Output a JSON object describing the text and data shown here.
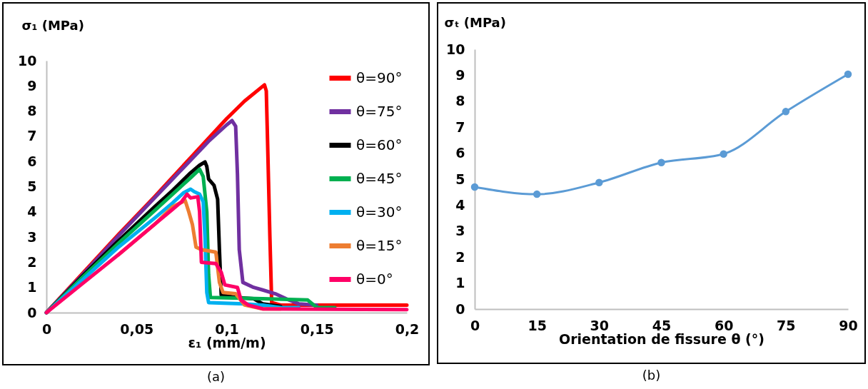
{
  "chart_data": [
    {
      "type": "line",
      "xlabel": "ε₁ (mm/m)",
      "ylabel": "σ₁ (MPa)",
      "xlim": [
        0,
        0.2
      ],
      "ylim": [
        0,
        10
      ],
      "xticks": [
        {
          "value": 0,
          "label": "0"
        },
        {
          "value": 0.05,
          "label": "0,05"
        },
        {
          "value": 0.1,
          "label": "0,1"
        },
        {
          "value": 0.15,
          "label": "0,15"
        },
        {
          "value": 0.2,
          "label": "0,2"
        }
      ],
      "yticks": [
        0,
        1,
        2,
        3,
        4,
        5,
        6,
        7,
        8,
        9,
        10
      ],
      "grid": false,
      "legend": "top right",
      "marker": "none",
      "annotations": [
        "(a)"
      ],
      "series": [
        {
          "name": "θ=90°",
          "color": "#ff0000",
          "x": [
            0,
            0.02,
            0.04,
            0.06,
            0.08,
            0.1,
            0.11,
            0.121,
            0.122,
            0.1225,
            0.124,
            0.125,
            0.13,
            0.16,
            0.2
          ],
          "values": [
            0,
            1.55,
            3.1,
            4.6,
            6.15,
            7.7,
            8.4,
            9.04,
            8.8,
            7.4,
            3,
            0.4,
            0.3,
            0.3,
            0.3
          ]
        },
        {
          "name": "θ=75°",
          "color": "#7030a0",
          "x": [
            0,
            0.02,
            0.04,
            0.06,
            0.08,
            0.09,
            0.1,
            0.103,
            0.105,
            0.106,
            0.107,
            0.109,
            0.115,
            0.12,
            0.127,
            0.133,
            0.14,
            0.15
          ],
          "values": [
            0,
            1.5,
            3.05,
            4.55,
            6.05,
            6.8,
            7.45,
            7.62,
            7.4,
            5.5,
            2.5,
            1.2,
            1,
            0.9,
            0.75,
            0.55,
            0.35,
            0.3
          ]
        },
        {
          "name": "θ=60°",
          "color": "#000000",
          "x": [
            0,
            0.02,
            0.04,
            0.06,
            0.07,
            0.08,
            0.085,
            0.088,
            0.089,
            0.09,
            0.093,
            0.095,
            0.096,
            0.097,
            0.105,
            0.115,
            0.12,
            0.13
          ],
          "values": [
            0,
            1.45,
            2.85,
            4.2,
            4.85,
            5.55,
            5.85,
            5.98,
            5.8,
            5.3,
            5.05,
            4.5,
            2.5,
            0.7,
            0.6,
            0.55,
            0.35,
            0.25
          ]
        },
        {
          "name": "θ=45°",
          "color": "#00b050",
          "x": [
            0,
            0.02,
            0.04,
            0.06,
            0.07,
            0.08,
            0.085,
            0.087,
            0.089,
            0.09,
            0.091,
            0.12,
            0.145,
            0.15,
            0.16
          ],
          "values": [
            0,
            1.4,
            2.75,
            4.05,
            4.7,
            5.35,
            5.69,
            5.4,
            4,
            1.5,
            0.6,
            0.55,
            0.5,
            0.2,
            0.2
          ]
        },
        {
          "name": "θ=30°",
          "color": "#00b0f0",
          "x": [
            0,
            0.02,
            0.04,
            0.06,
            0.07,
            0.076,
            0.08,
            0.082,
            0.085,
            0.087,
            0.088,
            0.089,
            0.09,
            0.11,
            0.12,
            0.13,
            0.14
          ],
          "values": [
            0,
            1.3,
            2.6,
            3.75,
            4.35,
            4.75,
            4.9,
            4.8,
            4.7,
            4.4,
            3,
            0.8,
            0.4,
            0.35,
            0.3,
            0.2,
            0.2
          ]
        },
        {
          "name": "θ=15°",
          "color": "#ed7d31",
          "x": [
            0.04,
            0.06,
            0.07,
            0.077,
            0.079,
            0.081,
            0.083,
            0.086,
            0.094,
            0.096,
            0.098,
            0.105,
            0.11,
            0.12,
            0.13
          ],
          "values": [
            2.3,
            3.5,
            4.2,
            4.45,
            4,
            3.5,
            2.6,
            2.5,
            2.4,
            1.2,
            0.8,
            0.75,
            0.3,
            0.15,
            0.15
          ]
        },
        {
          "name": "θ=0°",
          "color": "#ff0066",
          "x": [
            0,
            0.02,
            0.04,
            0.06,
            0.07,
            0.075,
            0.078,
            0.08,
            0.084,
            0.085,
            0.086,
            0.094,
            0.097,
            0.099,
            0.106,
            0.108,
            0.112,
            0.12,
            0.2
          ],
          "values": [
            0,
            1.15,
            2.3,
            3.5,
            4.1,
            4.4,
            4.7,
            4.55,
            4.6,
            4,
            2,
            1.95,
            1.6,
            1.1,
            1,
            0.5,
            0.3,
            0.15,
            0.12
          ]
        }
      ]
    },
    {
      "type": "line",
      "xlabel": "Orientation de fissure θ (°)",
      "ylabel": "σₜ (MPa)",
      "xlim": [
        0,
        90
      ],
      "ylim": [
        0,
        10
      ],
      "xticks": [
        0,
        15,
        30,
        45,
        60,
        75,
        90
      ],
      "yticks": [
        0,
        1,
        2,
        3,
        4,
        5,
        6,
        7,
        8,
        9,
        10
      ],
      "grid": false,
      "legend": false,
      "marker": "circle",
      "annotations": [
        "(b)"
      ],
      "series": [
        {
          "color": "#5b9bd5",
          "x": [
            0,
            15,
            30,
            45,
            60,
            75,
            90
          ],
          "values": [
            4.7,
            4.42,
            4.87,
            5.64,
            5.97,
            7.6,
            9.04
          ]
        }
      ]
    }
  ]
}
